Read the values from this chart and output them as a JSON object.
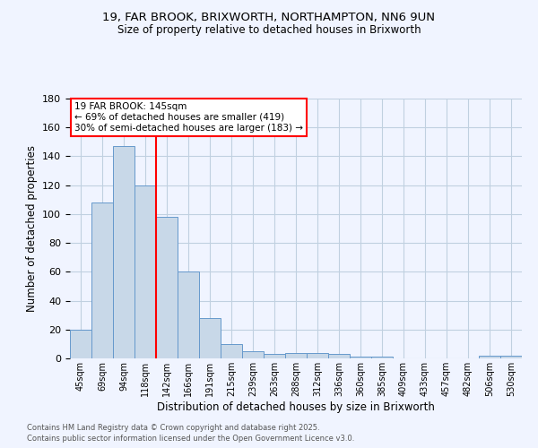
{
  "title_line1": "19, FAR BROOK, BRIXWORTH, NORTHAMPTON, NN6 9UN",
  "title_line2": "Size of property relative to detached houses in Brixworth",
  "xlabel": "Distribution of detached houses by size in Brixworth",
  "ylabel": "Number of detached properties",
  "categories": [
    "45sqm",
    "69sqm",
    "94sqm",
    "118sqm",
    "142sqm",
    "166sqm",
    "191sqm",
    "215sqm",
    "239sqm",
    "263sqm",
    "288sqm",
    "312sqm",
    "336sqm",
    "360sqm",
    "385sqm",
    "409sqm",
    "433sqm",
    "457sqm",
    "482sqm",
    "506sqm",
    "530sqm"
  ],
  "values": [
    20,
    108,
    147,
    120,
    98,
    60,
    28,
    10,
    5,
    3,
    4,
    4,
    3,
    1,
    1,
    0,
    0,
    0,
    0,
    2,
    2
  ],
  "bar_color": "#c8d8e8",
  "bar_edge_color": "#6699cc",
  "grid_color": "#c0d0e0",
  "annotation_text": "19 FAR BROOK: 145sqm\n← 69% of detached houses are smaller (419)\n30% of semi-detached houses are larger (183) →",
  "annotation_box_color": "white",
  "annotation_box_edge": "red",
  "red_line_x": 4.0,
  "ylim": [
    0,
    180
  ],
  "yticks": [
    0,
    20,
    40,
    60,
    80,
    100,
    120,
    140,
    160,
    180
  ],
  "footnote1": "Contains HM Land Registry data © Crown copyright and database right 2025.",
  "footnote2": "Contains public sector information licensed under the Open Government Licence v3.0.",
  "bg_color": "#f0f4ff"
}
